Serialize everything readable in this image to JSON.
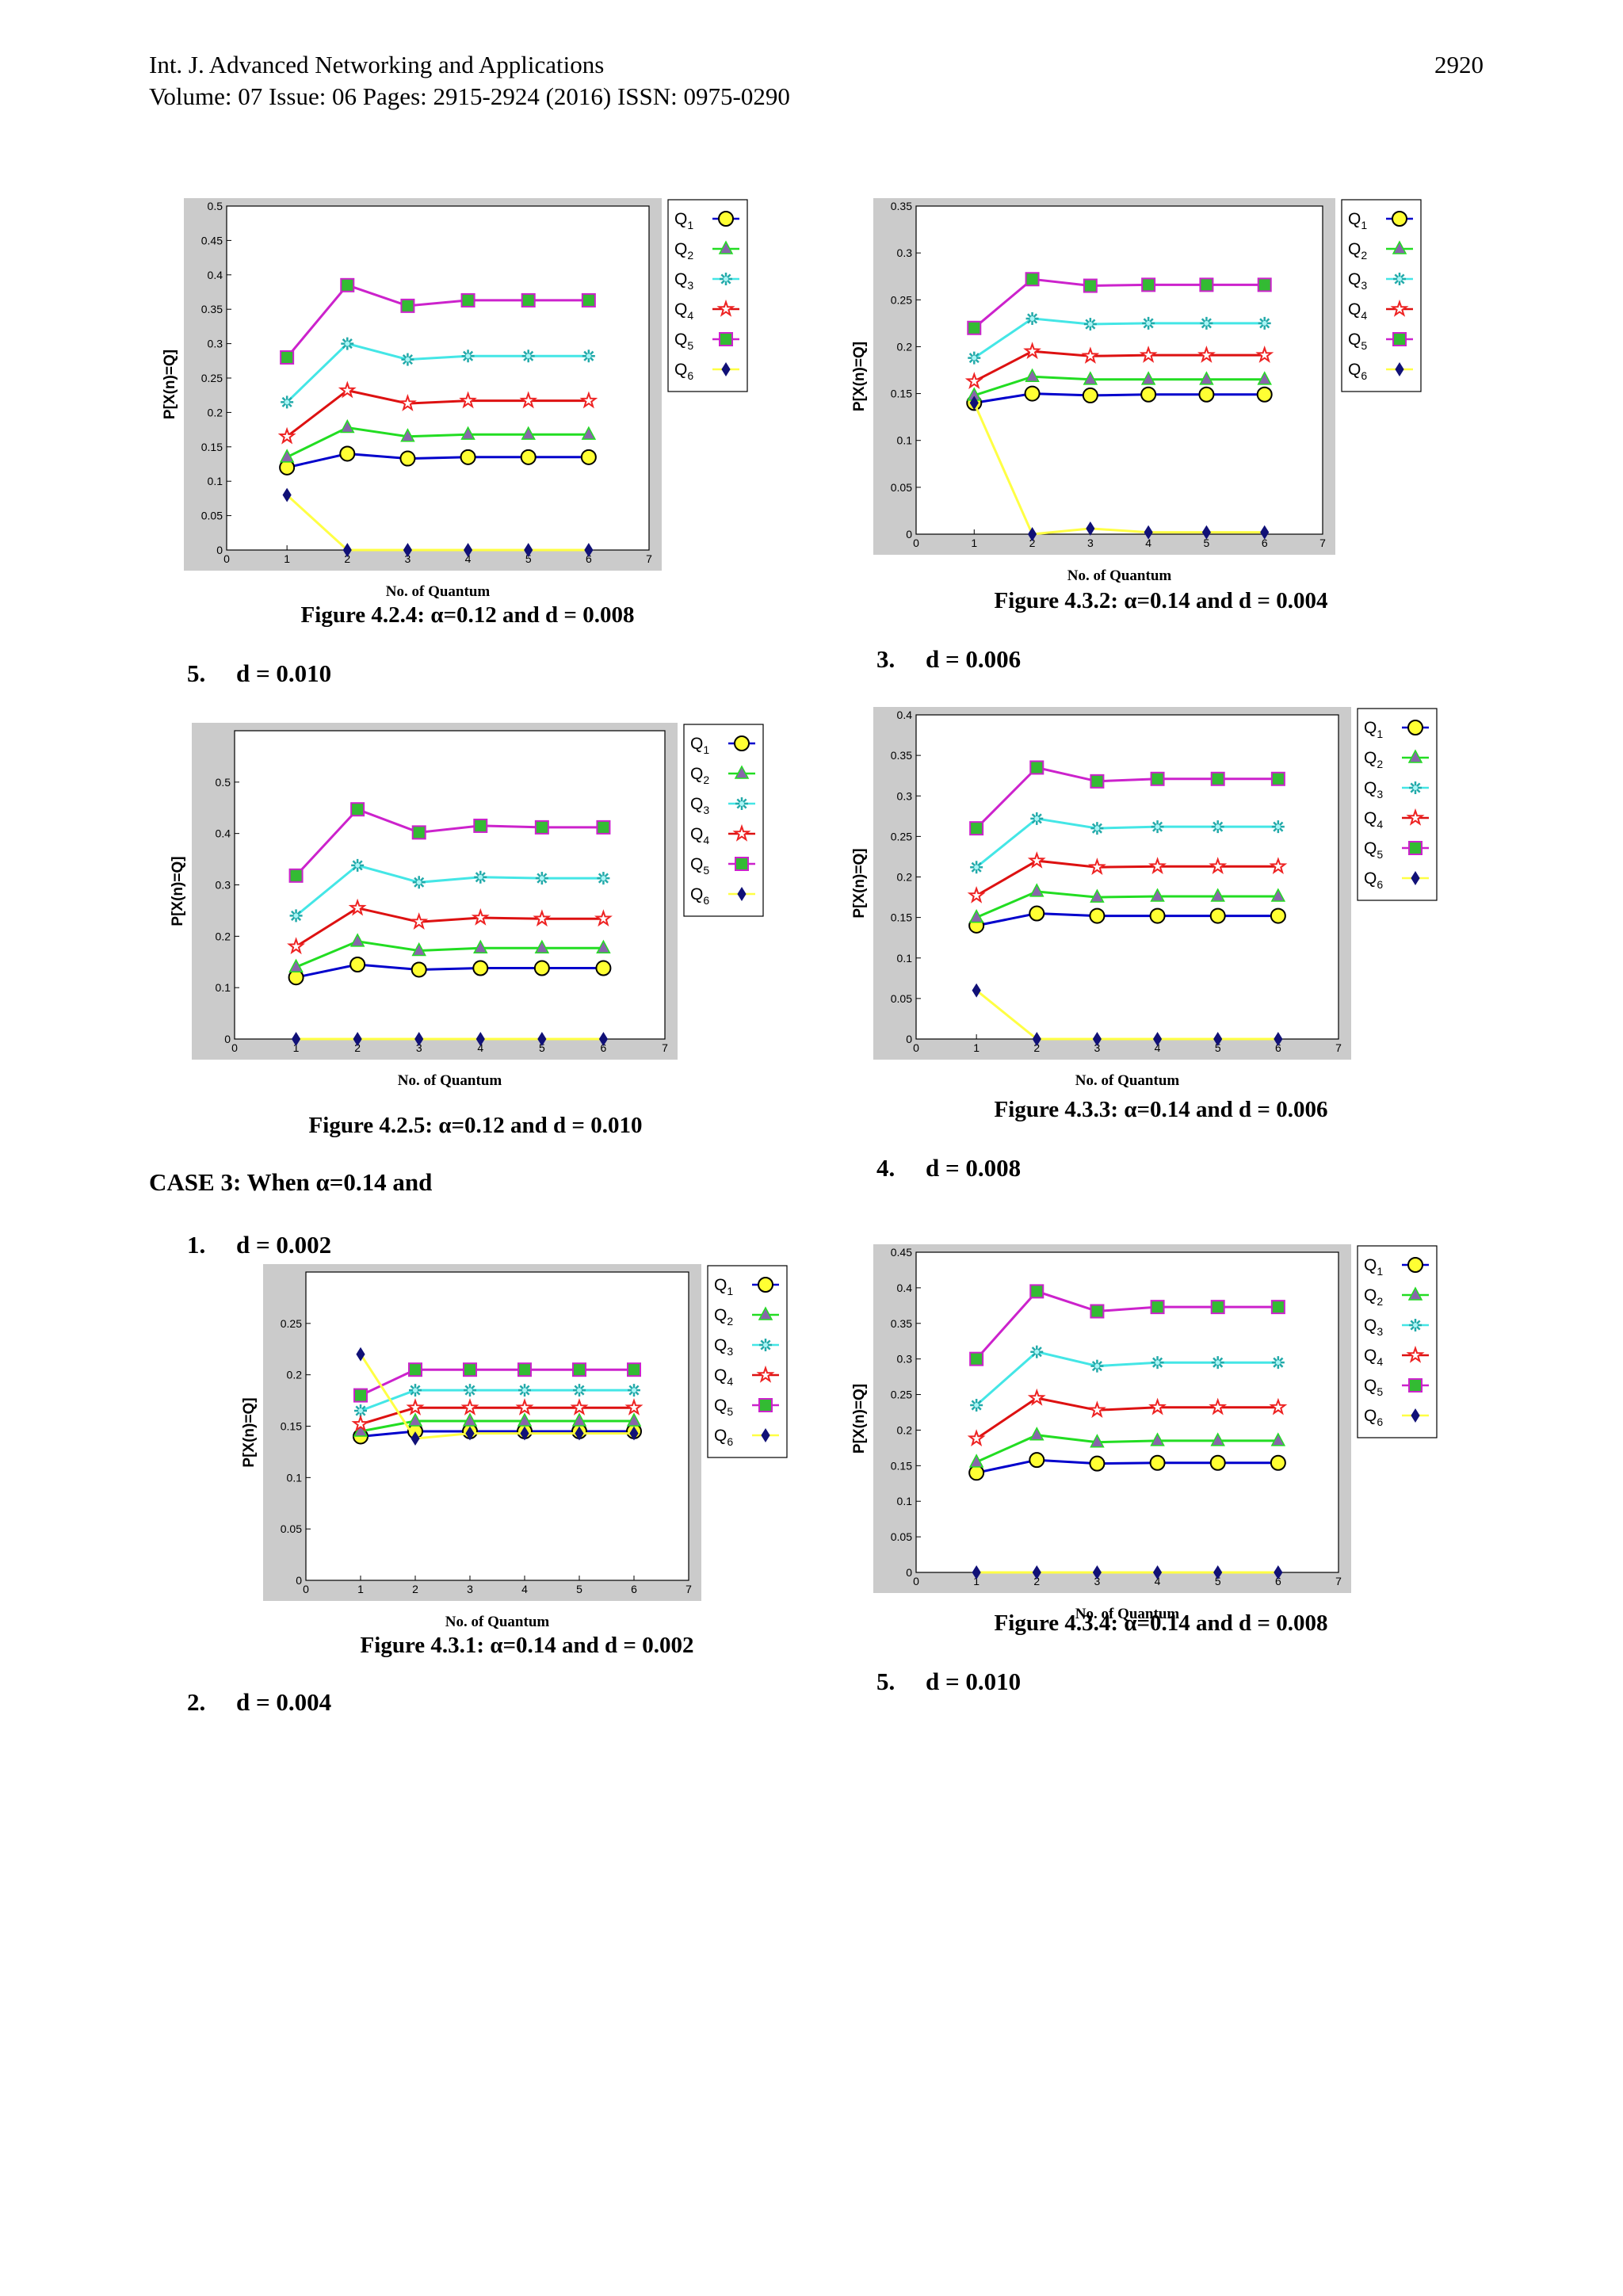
{
  "header": {
    "journal": "Int. J. Advanced Networking and Applications",
    "volume": "Volume: 07 Issue: 06 Pages: 2915-2924 (2016) ISSN: 0975-0290",
    "page_number": "2920"
  },
  "headings": {
    "d010_left": "5.  d = 0.010",
    "case3": "CASE 3: When α=0.14 and",
    "d002": "1.  d = 0.002",
    "d004": "2.  d = 0.004",
    "d006": "3.  d = 0.006",
    "d008": "4.  d = 0.008",
    "d010_right": "5.  d = 0.010"
  },
  "captions": {
    "f424": "Figure 4.2.4:  α=0.12 and d = 0.008",
    "f425": "Figure 4.2.5:  α=0.12 and d = 0.010",
    "f431": "Figure 4.3.1:  α=0.14 and d = 0.002",
    "f432": "Figure 4.3.2:  α=0.14 and d = 0.004",
    "f433": "Figure 4.3.3:  α=0.14 and d = 0.006",
    "f434": "Figure 4.3.4:  α=0.14 and d = 0.008"
  },
  "chart_data": [
    {
      "id": "f424",
      "type": "line",
      "xlabel": "No. of Quantum",
      "ylabel": "P[X(n)=Q]",
      "xlim": [
        0,
        7
      ],
      "ylim": [
        0,
        0.5
      ],
      "yticks": [
        0,
        0.05,
        0.1,
        0.15,
        0.2,
        0.25,
        0.3,
        0.35,
        0.4,
        0.45,
        0.5
      ],
      "ytick_labels": [
        "0",
        "0.05",
        "0.1",
        "0.15",
        "0.2",
        "0.25",
        "0.3",
        "0.35",
        "0.4",
        "0.45",
        "0.5"
      ],
      "x": [
        1,
        2,
        3,
        4,
        5,
        6
      ],
      "series": [
        {
          "name": "Q1",
          "values": [
            0.12,
            0.14,
            0.133,
            0.135,
            0.135,
            0.135
          ]
        },
        {
          "name": "Q2",
          "values": [
            0.135,
            0.178,
            0.165,
            0.168,
            0.168,
            0.168
          ]
        },
        {
          "name": "Q3",
          "values": [
            0.215,
            0.3,
            0.277,
            0.282,
            0.282,
            0.282
          ]
        },
        {
          "name": "Q4",
          "values": [
            0.165,
            0.232,
            0.213,
            0.217,
            0.217,
            0.217
          ]
        },
        {
          "name": "Q5",
          "values": [
            0.28,
            0.385,
            0.355,
            0.363,
            0.363,
            0.363
          ]
        },
        {
          "name": "Q6",
          "values": [
            0.08,
            0.0,
            0.0,
            0.0,
            0.0,
            0.0
          ]
        }
      ]
    },
    {
      "id": "f425",
      "type": "line",
      "xlabel": "No. of Quantum",
      "ylabel": "P[X(n)=Q]",
      "xlim": [
        0,
        7
      ],
      "ylim": [
        0,
        0.6
      ],
      "yticks": [
        0,
        0.1,
        0.2,
        0.3,
        0.4,
        0.5
      ],
      "ytick_labels": [
        "0",
        "0.1",
        "0.2",
        "0.3",
        "0.4",
        "0.5"
      ],
      "x": [
        1,
        2,
        3,
        4,
        5,
        6
      ],
      "series": [
        {
          "name": "Q1",
          "values": [
            0.12,
            0.145,
            0.135,
            0.138,
            0.138,
            0.138
          ]
        },
        {
          "name": "Q2",
          "values": [
            0.14,
            0.19,
            0.172,
            0.177,
            0.177,
            0.177
          ]
        },
        {
          "name": "Q3",
          "values": [
            0.24,
            0.338,
            0.305,
            0.315,
            0.313,
            0.313
          ]
        },
        {
          "name": "Q4",
          "values": [
            0.18,
            0.255,
            0.228,
            0.236,
            0.234,
            0.234
          ]
        },
        {
          "name": "Q5",
          "values": [
            0.318,
            0.447,
            0.402,
            0.415,
            0.412,
            0.412
          ]
        },
        {
          "name": "Q6",
          "values": [
            0.0,
            0.0,
            0.0,
            0.0,
            0.0,
            0.0
          ]
        }
      ]
    },
    {
      "id": "f431",
      "type": "line",
      "xlabel": "No. of Quantum",
      "ylabel": "P[X(n)=Q]",
      "xlim": [
        0,
        7
      ],
      "ylim": [
        0,
        0.3
      ],
      "yticks": [
        0,
        0.05,
        0.1,
        0.15,
        0.2,
        0.25
      ],
      "ytick_labels": [
        "0",
        "0.05",
        "0.1",
        "0.15",
        "0.2",
        "0.25"
      ],
      "x": [
        1,
        2,
        3,
        4,
        5,
        6
      ],
      "series": [
        {
          "name": "Q1",
          "values": [
            0.14,
            0.145,
            0.145,
            0.145,
            0.145,
            0.145
          ]
        },
        {
          "name": "Q2",
          "values": [
            0.145,
            0.155,
            0.155,
            0.155,
            0.155,
            0.155
          ]
        },
        {
          "name": "Q3",
          "values": [
            0.165,
            0.185,
            0.185,
            0.185,
            0.185,
            0.185
          ]
        },
        {
          "name": "Q4",
          "values": [
            0.152,
            0.168,
            0.168,
            0.168,
            0.168,
            0.168
          ]
        },
        {
          "name": "Q5",
          "values": [
            0.18,
            0.205,
            0.205,
            0.205,
            0.205,
            0.205
          ]
        },
        {
          "name": "Q6",
          "values": [
            0.22,
            0.138,
            0.143,
            0.143,
            0.143,
            0.143
          ]
        }
      ]
    },
    {
      "id": "f432",
      "type": "line",
      "xlabel": "No. of Quantum",
      "ylabel": "P[X(n)=Q]",
      "xlim": [
        0,
        7
      ],
      "ylim": [
        0,
        0.35
      ],
      "yticks": [
        0,
        0.05,
        0.1,
        0.15,
        0.2,
        0.25,
        0.3,
        0.35
      ],
      "ytick_labels": [
        "0",
        "0.05",
        "0.1",
        "0.15",
        "0.2",
        "0.25",
        "0.3",
        "0.35"
      ],
      "x": [
        1,
        2,
        3,
        4,
        5,
        6
      ],
      "series": [
        {
          "name": "Q1",
          "values": [
            0.14,
            0.15,
            0.148,
            0.149,
            0.149,
            0.149
          ]
        },
        {
          "name": "Q2",
          "values": [
            0.148,
            0.168,
            0.165,
            0.165,
            0.165,
            0.165
          ]
        },
        {
          "name": "Q3",
          "values": [
            0.188,
            0.23,
            0.224,
            0.225,
            0.225,
            0.225
          ]
        },
        {
          "name": "Q4",
          "values": [
            0.163,
            0.195,
            0.19,
            0.191,
            0.191,
            0.191
          ]
        },
        {
          "name": "Q5",
          "values": [
            0.22,
            0.272,
            0.265,
            0.266,
            0.266,
            0.266
          ]
        },
        {
          "name": "Q6",
          "values": [
            0.14,
            0.0,
            0.006,
            0.002,
            0.002,
            0.002
          ]
        }
      ]
    },
    {
      "id": "f433",
      "type": "line",
      "xlabel": "No. of Quantum",
      "ylabel": "P[X(n)=Q]",
      "xlim": [
        0,
        7
      ],
      "ylim": [
        0,
        0.4
      ],
      "yticks": [
        0,
        0.05,
        0.1,
        0.15,
        0.2,
        0.25,
        0.3,
        0.35,
        0.4
      ],
      "ytick_labels": [
        "0",
        "0.05",
        "0.1",
        "0.15",
        "0.2",
        "0.25",
        "0.3",
        "0.35",
        "0.4"
      ],
      "x": [
        1,
        2,
        3,
        4,
        5,
        6
      ],
      "series": [
        {
          "name": "Q1",
          "values": [
            0.14,
            0.155,
            0.152,
            0.152,
            0.152,
            0.152
          ]
        },
        {
          "name": "Q2",
          "values": [
            0.15,
            0.182,
            0.175,
            0.176,
            0.176,
            0.176
          ]
        },
        {
          "name": "Q3",
          "values": [
            0.212,
            0.272,
            0.26,
            0.262,
            0.262,
            0.262
          ]
        },
        {
          "name": "Q4",
          "values": [
            0.177,
            0.22,
            0.212,
            0.213,
            0.213,
            0.213
          ]
        },
        {
          "name": "Q5",
          "values": [
            0.26,
            0.335,
            0.318,
            0.321,
            0.321,
            0.321
          ]
        },
        {
          "name": "Q6",
          "values": [
            0.06,
            0.0,
            0.0,
            0.0,
            0.0,
            0.0
          ]
        }
      ]
    },
    {
      "id": "f434",
      "type": "line",
      "xlabel": "No. of Quantum",
      "ylabel": "P[X(n)=Q]",
      "xlim": [
        0,
        7
      ],
      "ylim": [
        0,
        0.45
      ],
      "yticks": [
        0,
        0.05,
        0.1,
        0.15,
        0.2,
        0.25,
        0.3,
        0.35,
        0.4,
        0.45
      ],
      "ytick_labels": [
        "0",
        "0.05",
        "0.1",
        "0.15",
        "0.2",
        "0.25",
        "0.3",
        "0.35",
        "0.4",
        "0.45"
      ],
      "x": [
        1,
        2,
        3,
        4,
        5,
        6
      ],
      "series": [
        {
          "name": "Q1",
          "values": [
            0.14,
            0.158,
            0.153,
            0.154,
            0.154,
            0.154
          ]
        },
        {
          "name": "Q2",
          "values": [
            0.155,
            0.193,
            0.183,
            0.185,
            0.185,
            0.185
          ]
        },
        {
          "name": "Q3",
          "values": [
            0.235,
            0.31,
            0.29,
            0.295,
            0.295,
            0.295
          ]
        },
        {
          "name": "Q4",
          "values": [
            0.188,
            0.245,
            0.228,
            0.232,
            0.232,
            0.232
          ]
        },
        {
          "name": "Q5",
          "values": [
            0.3,
            0.395,
            0.367,
            0.373,
            0.373,
            0.373
          ]
        },
        {
          "name": "Q6",
          "values": [
            0.0,
            0.0,
            0.0,
            0.0,
            0.0,
            0.0
          ]
        }
      ]
    }
  ],
  "series_style": {
    "Q1": {
      "line": "#0000cc",
      "marker": "circle",
      "fill": "#ffff33"
    },
    "Q2": {
      "line": "#22dd22",
      "marker": "triangle",
      "fill": "#8866aa"
    },
    "Q3": {
      "line": "#44e6e6",
      "marker": "asterisk",
      "fill": "#22aaaa"
    },
    "Q4": {
      "line": "#dd1111",
      "marker": "star",
      "fill": "#ee2222"
    },
    "Q5": {
      "line": "#cc22cc",
      "marker": "square",
      "fill": "#33bb33"
    },
    "Q6": {
      "line": "#ffff44",
      "marker": "diamond",
      "fill": "#111177"
    }
  }
}
